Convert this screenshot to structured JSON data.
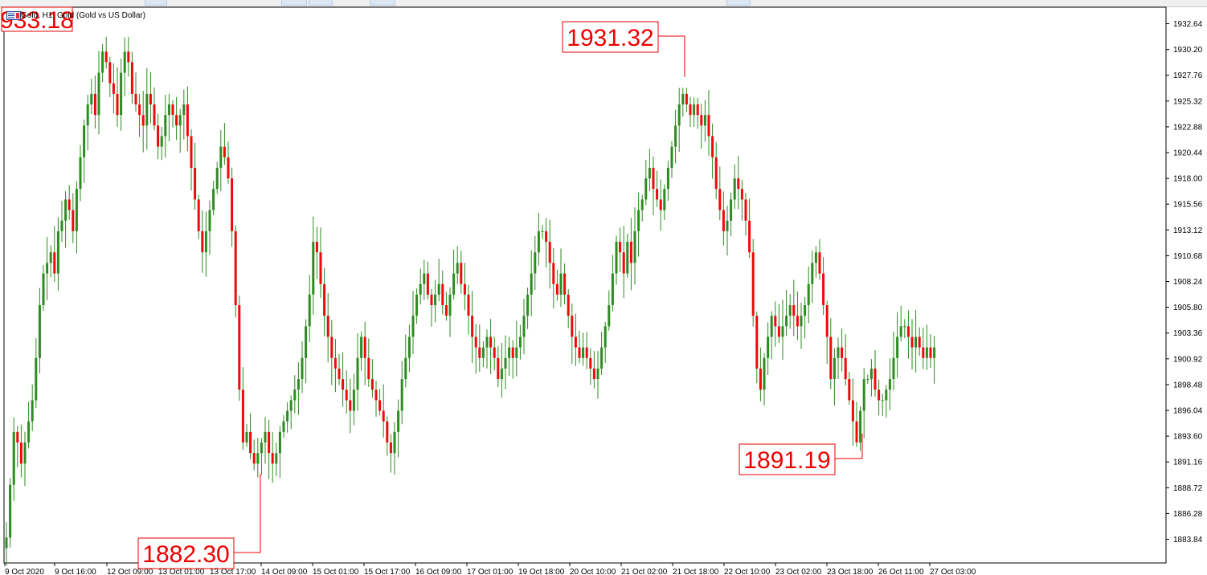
{
  "window": {
    "title": "Gold, H1: Gold (Gold vs US Dollar)"
  },
  "colors": {
    "bull": "#2e8b22",
    "bear": "#ee0a0a",
    "wick": "#2e8b22",
    "callout": "#ee0000",
    "axis": "#000000",
    "background": "#ffffff"
  },
  "chart_data": {
    "type": "candlestick",
    "title": "Gold, H1: Gold (Gold vs US Dollar)",
    "ylim": [
      1881.6,
      1934.2
    ],
    "y_ticks": [
      "1932.64",
      "1930.20",
      "1927.76",
      "1925.32",
      "1922.88",
      "1920.44",
      "1918.00",
      "1915.56",
      "1913.12",
      "1910.68",
      "1908.24",
      "1905.80",
      "1903.36",
      "1900.92",
      "1898.48",
      "1896.04",
      "1893.60",
      "1891.16",
      "1888.72",
      "1886.28",
      "1883.84"
    ],
    "x_ticks": [
      "9 Oct 2020",
      "9 Oct 16:00",
      "12 Oct 09:00",
      "13 Oct 01:00",
      "13 Oct 17:00",
      "14 Oct 09:00",
      "15 Oct 01:00",
      "15 Oct 17:00",
      "16 Oct 09:00",
      "17 Oct 01:00",
      "19 Oct 18:00",
      "20 Oct 10:00",
      "21 Oct 02:00",
      "21 Oct 18:00",
      "22 Oct 10:00",
      "23 Oct 02:00",
      "23 Oct 18:00",
      "26 Oct 11:00",
      "27 Oct 03:00"
    ],
    "annotations": [
      {
        "text": "933.18"
      },
      {
        "text": "1931.32"
      },
      {
        "text": "1882.30"
      },
      {
        "text": "1891.19"
      }
    ],
    "series": [
      {
        "close": [
          1884,
          1889,
          1894,
          1893,
          1891,
          1893,
          1895,
          1897,
          1901,
          1906,
          1909,
          1910,
          1911,
          1909,
          1913,
          1914,
          1916,
          1915,
          1913,
          1917,
          1920,
          1923,
          1925,
          1926,
          1924,
          1928,
          1930,
          1929,
          1927,
          1926,
          1924,
          1928,
          1930,
          1929,
          1926,
          1925,
          1924,
          1923,
          1926,
          1925,
          1923,
          1921,
          1922,
          1924,
          1925,
          1924,
          1923,
          1924,
          1925,
          1922,
          1919,
          1916,
          1913,
          1911,
          1913,
          1915,
          1917,
          1919,
          1921,
          1920,
          1918,
          1913,
          1906,
          1898,
          1893,
          1894,
          1892,
          1891,
          1892,
          1893,
          1894,
          1892,
          1891,
          1892,
          1894,
          1895,
          1896,
          1897,
          1898,
          1899,
          1901,
          1904,
          1907,
          1912,
          1911,
          1908,
          1905,
          1903,
          1901,
          1900,
          1899,
          1898,
          1897,
          1896,
          1898,
          1901,
          1903,
          1901,
          1899,
          1898,
          1897,
          1896,
          1895,
          1893,
          1892,
          1894,
          1896,
          1899,
          1901,
          1903,
          1905,
          1907,
          1908,
          1909,
          1907,
          1906,
          1907,
          1908,
          1906,
          1905,
          1907,
          1909,
          1910,
          1908,
          1907,
          1905,
          1903,
          1902,
          1901,
          1902,
          1903,
          1902,
          1901,
          1899,
          1900,
          1901,
          1902,
          1901,
          1902,
          1903,
          1905,
          1907,
          1909,
          1911,
          1913,
          1913,
          1912,
          1910,
          1908,
          1907,
          1909,
          1907,
          1905,
          1903,
          1902,
          1901,
          1902,
          1901,
          1900,
          1899,
          1900,
          1902,
          1904,
          1906,
          1909,
          1912,
          1911,
          1909,
          1912,
          1910,
          1913,
          1915,
          1916,
          1918,
          1919,
          1917,
          1916,
          1915,
          1917,
          1919,
          1921,
          1923,
          1925,
          1926,
          1925,
          1924,
          1925,
          1924,
          1923,
          1924,
          1922,
          1920,
          1917,
          1915,
          1913,
          1914,
          1916,
          1918,
          1917,
          1916,
          1914,
          1911,
          1905,
          1900,
          1898,
          1901,
          1903,
          1905,
          1904,
          1903,
          1904,
          1905,
          1906,
          1905,
          1904,
          1905,
          1906,
          1908,
          1910,
          1911,
          1909,
          1906,
          1903,
          1899,
          1901,
          1902,
          1901,
          1899,
          1897,
          1895,
          1893,
          1896,
          1899,
          1899,
          1900,
          1898,
          1897,
          1897,
          1898,
          1899,
          1901,
          1903,
          1904,
          1904,
          1903,
          1902,
          1903,
          1902,
          1901,
          1902,
          1901,
          1902
        ]
      }
    ]
  }
}
